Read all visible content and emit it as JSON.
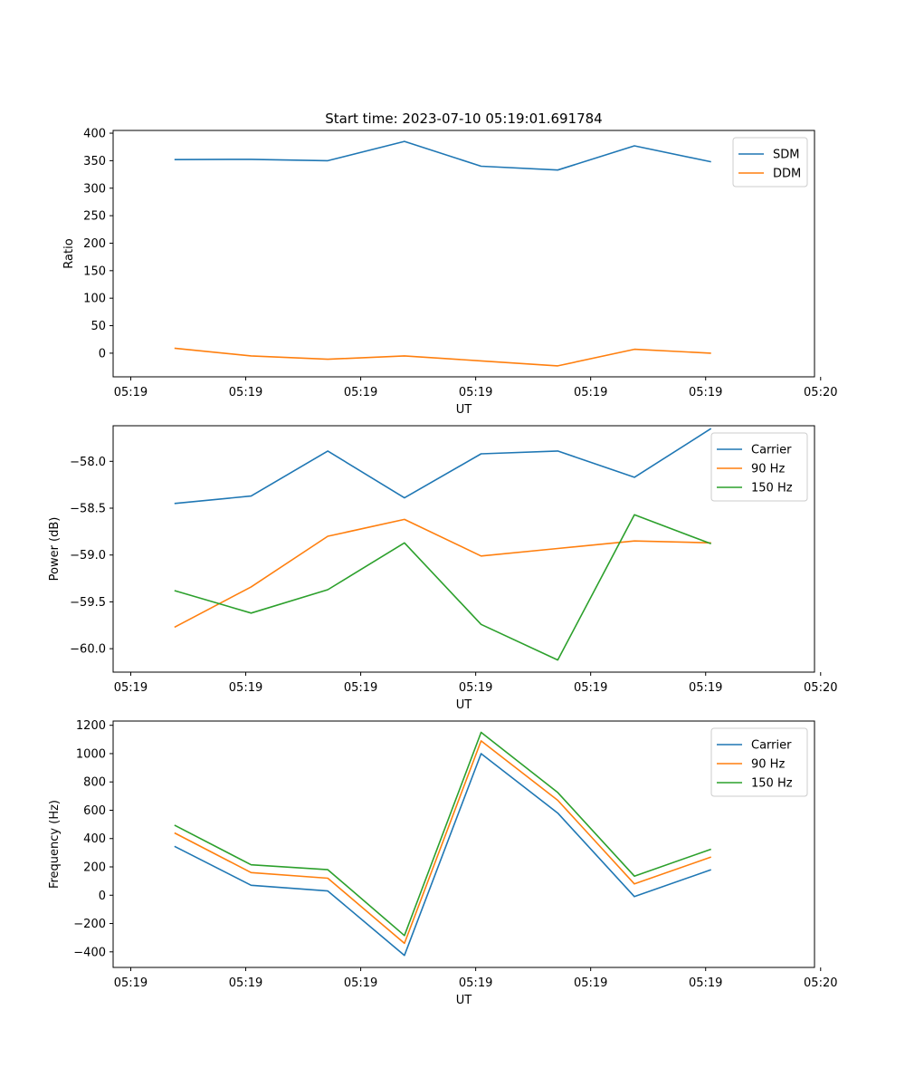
{
  "figure_title": "Start time: 2023-07-10 05:19:01.691784",
  "chart_data": [
    {
      "type": "line",
      "title": "Start time: 2023-07-10 05:19:01.691784",
      "xlabel": "UT",
      "ylabel": "Ratio",
      "x": [
        1,
        2,
        3,
        4,
        5,
        6,
        7,
        8
      ],
      "xlim": [
        0.2,
        9.35
      ],
      "xticks": [
        0.43,
        1.93,
        3.43,
        4.93,
        6.43,
        7.93,
        9.43
      ],
      "xtick_labels": [
        "05:19",
        "05:19",
        "05:19",
        "05:19",
        "05:19",
        "05:19",
        "05:20"
      ],
      "ylim": [
        -43,
        405
      ],
      "yticks": [
        0,
        50,
        100,
        150,
        200,
        250,
        300,
        350,
        400
      ],
      "ytick_labels": [
        "0",
        "50",
        "100",
        "150",
        "200",
        "250",
        "300",
        "350",
        "400"
      ],
      "legend": "top-right",
      "series": [
        {
          "name": "SDM",
          "color": "#1f77b4",
          "values": [
            352,
            352.5,
            350,
            385,
            340,
            333,
            377,
            348
          ]
        },
        {
          "name": "DDM",
          "color": "#ff7f0e",
          "values": [
            9,
            -5,
            -11,
            -5,
            -14,
            -23,
            7,
            0
          ]
        }
      ]
    },
    {
      "type": "line",
      "title": "",
      "xlabel": "UT",
      "ylabel": "Power (dB)",
      "x": [
        1,
        2,
        3,
        4,
        5,
        6,
        7,
        8
      ],
      "xlim": [
        0.2,
        9.35
      ],
      "xticks": [
        0.43,
        1.93,
        3.43,
        4.93,
        6.43,
        7.93,
        9.43
      ],
      "xtick_labels": [
        "05:19",
        "05:19",
        "05:19",
        "05:19",
        "05:19",
        "05:19",
        "05:20"
      ],
      "ylim": [
        -60.25,
        -57.62
      ],
      "yticks": [
        -60.0,
        -59.5,
        -59.0,
        -58.5,
        -58.0
      ],
      "ytick_labels": [
        "−60.0",
        "−59.5",
        "−59.0",
        "−58.5",
        "−58.0"
      ],
      "legend": "top-right",
      "series": [
        {
          "name": "Carrier",
          "color": "#1f77b4",
          "values": [
            -58.45,
            -58.37,
            -57.89,
            -58.39,
            -57.92,
            -57.89,
            -58.17,
            -57.65
          ]
        },
        {
          "name": "90 Hz",
          "color": "#ff7f0e",
          "values": [
            -59.77,
            -59.34,
            -58.8,
            -58.62,
            -59.01,
            -58.93,
            -58.85,
            -58.87
          ]
        },
        {
          "name": "150 Hz",
          "color": "#2ca02c",
          "values": [
            -59.38,
            -59.62,
            -59.37,
            -58.87,
            -59.74,
            -60.12,
            -58.57,
            -58.88
          ]
        }
      ]
    },
    {
      "type": "line",
      "title": "",
      "xlabel": "UT",
      "ylabel": "Frequency (Hz)",
      "x": [
        1,
        2,
        3,
        4,
        5,
        6,
        7,
        8
      ],
      "xlim": [
        0.2,
        9.35
      ],
      "xticks": [
        0.43,
        1.93,
        3.43,
        4.93,
        6.43,
        7.93,
        9.43
      ],
      "xtick_labels": [
        "05:19",
        "05:19",
        "05:19",
        "05:19",
        "05:19",
        "05:19",
        "05:20"
      ],
      "ylim": [
        -510,
        1230
      ],
      "yticks": [
        -400,
        -200,
        0,
        200,
        400,
        600,
        800,
        1000,
        1200
      ],
      "ytick_labels": [
        "−400",
        "−200",
        "0",
        "200",
        "400",
        "600",
        "800",
        "1000",
        "1200"
      ],
      "legend": "top-right",
      "series": [
        {
          "name": "Carrier",
          "color": "#1f77b4",
          "values": [
            345,
            70,
            30,
            -425,
            1000,
            580,
            -10,
            180
          ]
        },
        {
          "name": "90 Hz",
          "color": "#ff7f0e",
          "values": [
            440,
            160,
            120,
            -340,
            1090,
            670,
            80,
            270
          ]
        },
        {
          "name": "150 Hz",
          "color": "#2ca02c",
          "values": [
            495,
            215,
            180,
            -285,
            1150,
            725,
            135,
            325
          ]
        }
      ]
    }
  ]
}
